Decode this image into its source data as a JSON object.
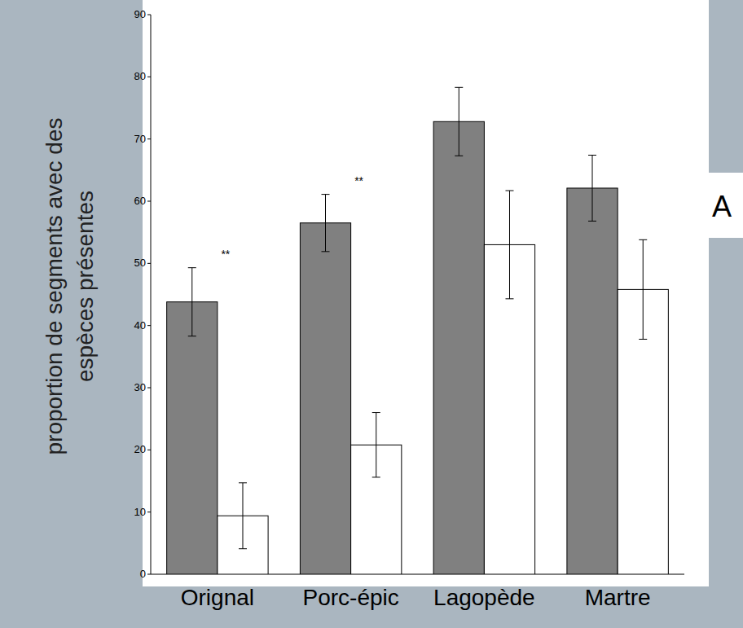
{
  "chart_data": {
    "type": "bar",
    "y_label": "proportion de segments avec des espèces présentes",
    "panel_label": "A",
    "categories": [
      "Orignal",
      "Porc-épic",
      "Lagopède",
      "Martre"
    ],
    "series": [
      {
        "color": "#808080",
        "values": [
          43.8,
          56.5,
          72.8,
          62.1
        ],
        "errors": [
          5.5,
          4.6,
          5.5,
          5.3
        ]
      },
      {
        "color": "#ffffff",
        "values": [
          9.4,
          20.8,
          53.0,
          45.8
        ],
        "errors": [
          5.3,
          5.2,
          8.7,
          8.0
        ]
      }
    ],
    "annotations": [
      {
        "text": "**",
        "category": 0
      },
      {
        "text": "**",
        "category": 1
      }
    ],
    "ylim": [
      0,
      90
    ],
    "yticks": [
      0,
      10,
      20,
      30,
      40,
      50,
      60,
      70,
      80,
      90
    ],
    "grid": false
  }
}
